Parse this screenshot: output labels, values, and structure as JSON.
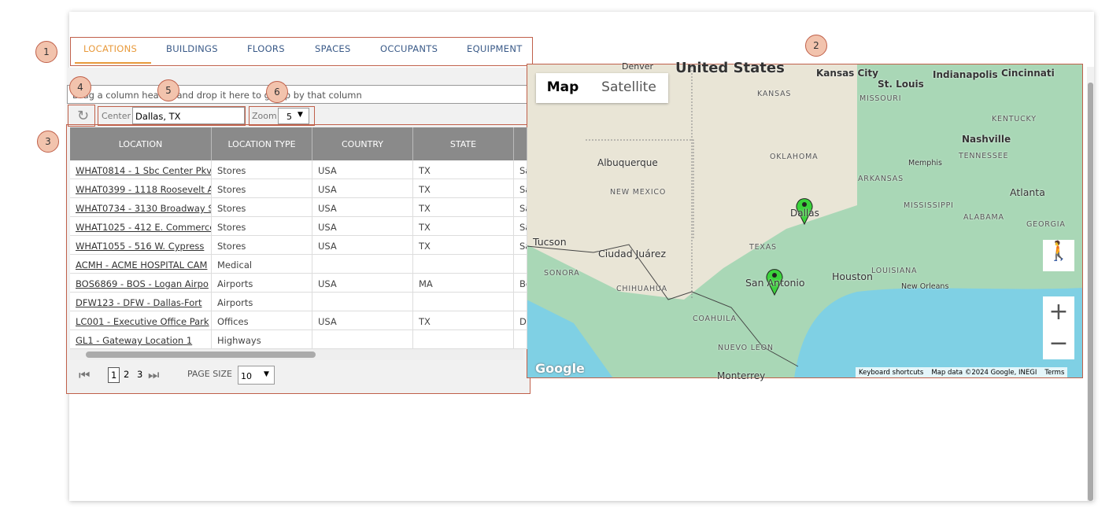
{
  "tabs": [
    "LOCATIONS",
    "BUILDINGS",
    "FLOORS",
    "SPACES",
    "OCCUPANTS",
    "EQUIPMENT"
  ],
  "badges": [
    "1",
    "2",
    "3",
    "4",
    "5",
    "6"
  ],
  "group_bar": "Drag a column header and drop it here to group by that column",
  "toolbar": {
    "center_label": "Center",
    "center_value": "Dallas, TX",
    "zoom_label": "Zoom",
    "zoom_value": "5"
  },
  "table": {
    "headers": [
      "LOCATION",
      "LOCATION TYPE",
      "COUNTRY",
      "STATE"
    ],
    "rows": [
      [
        "WHAT0814 - 1 Sbc Center Pkv",
        "Stores",
        "USA",
        "TX",
        "Sa"
      ],
      [
        "WHAT0399 - 1118 Roosevelt A",
        "Stores",
        "USA",
        "TX",
        "Sa"
      ],
      [
        "WHAT0734 - 3130 Broadway S",
        "Stores",
        "USA",
        "TX",
        "Sa"
      ],
      [
        "WHAT1025 - 412 E. Commerce",
        "Stores",
        "USA",
        "TX",
        "Sa"
      ],
      [
        "WHAT1055 - 516 W. Cypress",
        "Stores",
        "USA",
        "TX",
        "Sa"
      ],
      [
        "ACMH - ACME HOSPITAL CAM",
        "Medical",
        null,
        null,
        null
      ],
      [
        "BOS6869 - BOS - Logan Airpo",
        "Airports",
        "USA",
        "MA",
        "Bo"
      ],
      [
        "DFW123 - DFW - Dallas-Fort",
        "Airports",
        null,
        null,
        null
      ],
      [
        "LC001 - Executive Office Park",
        "Offices",
        "USA",
        "TX",
        "D"
      ],
      [
        "GL1 - Gateway Location 1",
        "Highways",
        null,
        null,
        null
      ]
    ]
  },
  "pager": {
    "pages": [
      "1",
      "2",
      "3"
    ],
    "page_size_label": "PAGE SIZE",
    "page_size": "10"
  },
  "map": {
    "buttons": [
      "Map",
      "Satellite"
    ],
    "labels": [
      "United States",
      "Denver",
      "Kansas City",
      "St. Louis",
      "Indianapolis",
      "Cincinnati",
      "KANSAS",
      "MISSOURI",
      "KENTUCKY",
      "Nashville",
      "TENNESSEE",
      "Memphis",
      "OKLAHOMA",
      "ARKANSAS",
      "Albuquerque",
      "NEW MEXICO",
      "Atlanta",
      "Dallas",
      "MISSISSIPPI",
      "ALABAMA",
      "GEORGIA",
      "Tucson",
      "Ciudad Juárez",
      "TEXAS",
      "SONORA",
      "LOUISIANA",
      "Houston",
      "San Antonio",
      "New Orleans",
      "CHIHUAHUA",
      "COAHUILA",
      "NUEVO LEON",
      "Monterrey"
    ],
    "logo": "Google",
    "footer": [
      "Keyboard shortcuts",
      "Map data ©2024 Google, INEGI",
      "Terms"
    ]
  }
}
